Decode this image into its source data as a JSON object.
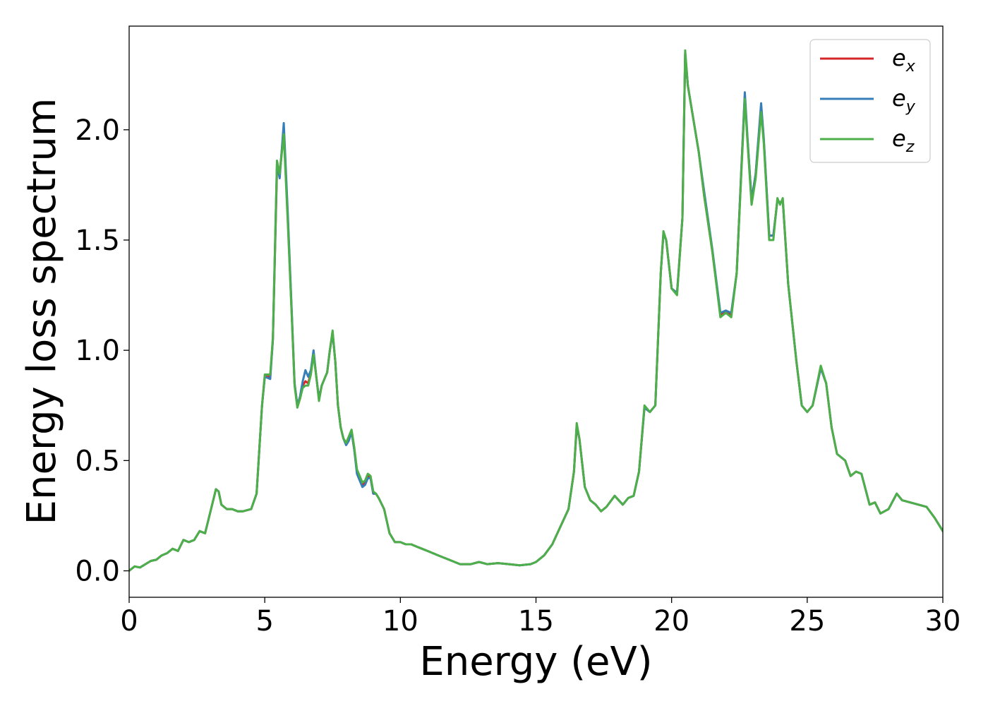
{
  "chart_data": {
    "type": "line",
    "title": "",
    "xlabel": "Energy (eV)",
    "ylabel": "Energy loss spectrum",
    "xlim": [
      0,
      30
    ],
    "ylim": [
      -0.12,
      2.47
    ],
    "xticks": [
      0,
      5,
      10,
      15,
      20,
      25,
      30
    ],
    "xtick_labels": [
      "0",
      "5",
      "10",
      "15",
      "20",
      "25",
      "30"
    ],
    "yticks": [
      0.0,
      0.5,
      1.0,
      1.5,
      2.0
    ],
    "ytick_labels": [
      "0.0",
      "0.5",
      "1.0",
      "1.5",
      "2.0"
    ],
    "grid": false,
    "legend_position": "top-right",
    "colors": {
      "e_x": "#d62728",
      "e_y": "#377eb8",
      "e_z": "#4daf4a"
    },
    "legend": [
      {
        "key": "e_x",
        "base": "e",
        "sub": "x"
      },
      {
        "key": "e_y",
        "base": "e",
        "sub": "y"
      },
      {
        "key": "e_z",
        "base": "e",
        "sub": "z"
      }
    ],
    "x": [
      0,
      0.2,
      0.4,
      0.6,
      0.8,
      1.0,
      1.2,
      1.4,
      1.6,
      1.8,
      2.0,
      2.2,
      2.4,
      2.6,
      2.8,
      3.0,
      3.2,
      3.3,
      3.4,
      3.6,
      3.8,
      4.0,
      4.2,
      4.5,
      4.7,
      4.9,
      5.0,
      5.2,
      5.3,
      5.45,
      5.55,
      5.7,
      5.85,
      6.0,
      6.1,
      6.2,
      6.3,
      6.4,
      6.5,
      6.6,
      6.7,
      6.8,
      6.9,
      7.0,
      7.1,
      7.2,
      7.3,
      7.4,
      7.5,
      7.6,
      7.7,
      7.8,
      7.9,
      8.0,
      8.1,
      8.2,
      8.3,
      8.4,
      8.5,
      8.6,
      8.7,
      8.8,
      8.9,
      9.0,
      9.1,
      9.2,
      9.4,
      9.6,
      9.8,
      10.0,
      10.2,
      10.4,
      10.6,
      10.8,
      11.0,
      11.4,
      11.8,
      12.2,
      12.6,
      12.9,
      13.2,
      13.6,
      14.0,
      14.4,
      14.8,
      15.0,
      15.3,
      15.6,
      15.9,
      16.2,
      16.4,
      16.5,
      16.6,
      16.8,
      17.0,
      17.2,
      17.4,
      17.6,
      17.9,
      18.2,
      18.4,
      18.6,
      18.8,
      19.0,
      19.2,
      19.4,
      19.6,
      19.7,
      19.8,
      20.0,
      20.2,
      20.4,
      20.5,
      20.6,
      20.8,
      21.0,
      21.2,
      21.5,
      21.8,
      22.0,
      22.2,
      22.4,
      22.6,
      22.7,
      22.8,
      22.95,
      23.1,
      23.3,
      23.4,
      23.6,
      23.75,
      23.9,
      24.0,
      24.1,
      24.3,
      24.6,
      24.8,
      25.0,
      25.2,
      25.5,
      25.7,
      25.9,
      26.1,
      26.4,
      26.6,
      26.8,
      27.0,
      27.3,
      27.5,
      27.7,
      28.0,
      28.3,
      28.5,
      28.8,
      29.1,
      29.4,
      29.7,
      30.0
    ],
    "series": [
      {
        "key": "e_x",
        "values": [
          0.0,
          0.02,
          0.015,
          0.03,
          0.045,
          0.05,
          0.07,
          0.08,
          0.1,
          0.09,
          0.14,
          0.13,
          0.14,
          0.18,
          0.17,
          0.27,
          0.37,
          0.36,
          0.3,
          0.28,
          0.28,
          0.27,
          0.27,
          0.28,
          0.35,
          0.75,
          0.88,
          0.88,
          1.05,
          1.82,
          1.8,
          2.0,
          1.6,
          1.15,
          0.85,
          0.75,
          0.78,
          0.84,
          0.86,
          0.85,
          0.9,
          0.99,
          0.88,
          0.78,
          0.84,
          0.87,
          0.9,
          1.0,
          1.08,
          0.95,
          0.75,
          0.65,
          0.6,
          0.58,
          0.6,
          0.63,
          0.55,
          0.45,
          0.42,
          0.39,
          0.4,
          0.43,
          0.42,
          0.35,
          0.35,
          0.33,
          0.28,
          0.17,
          0.13,
          0.13,
          0.12,
          0.12,
          0.11,
          0.1,
          0.09,
          0.07,
          0.05,
          0.03,
          0.03,
          0.04,
          0.03,
          0.035,
          0.03,
          0.025,
          0.03,
          0.04,
          0.07,
          0.12,
          0.2,
          0.28,
          0.45,
          0.65,
          0.6,
          0.38,
          0.32,
          0.3,
          0.27,
          0.29,
          0.34,
          0.3,
          0.33,
          0.34,
          0.45,
          0.74,
          0.72,
          0.75,
          1.35,
          1.53,
          1.5,
          1.28,
          1.26,
          1.6,
          2.34,
          2.2,
          2.05,
          1.9,
          1.7,
          1.45,
          1.16,
          1.18,
          1.16,
          1.35,
          1.9,
          2.15,
          1.95,
          1.68,
          1.8,
          2.1,
          1.95,
          1.52,
          1.52,
          1.68,
          1.67,
          1.68,
          1.3,
          0.95,
          0.75,
          0.72,
          0.75,
          0.92,
          0.85,
          0.65,
          0.53,
          0.5,
          0.43,
          0.45,
          0.44,
          0.3,
          0.31,
          0.26,
          0.28,
          0.35,
          0.32,
          0.31,
          0.3,
          0.29,
          0.24,
          0.18
        ]
      },
      {
        "key": "e_y",
        "values": [
          0.0,
          0.02,
          0.015,
          0.03,
          0.045,
          0.05,
          0.07,
          0.08,
          0.1,
          0.09,
          0.14,
          0.13,
          0.14,
          0.18,
          0.17,
          0.27,
          0.37,
          0.36,
          0.3,
          0.28,
          0.28,
          0.27,
          0.27,
          0.28,
          0.35,
          0.75,
          0.88,
          0.87,
          1.05,
          1.85,
          1.78,
          2.03,
          1.62,
          1.16,
          0.85,
          0.75,
          0.79,
          0.86,
          0.91,
          0.88,
          0.91,
          1.0,
          0.88,
          0.78,
          0.84,
          0.87,
          0.9,
          1.0,
          1.08,
          0.95,
          0.75,
          0.65,
          0.6,
          0.57,
          0.59,
          0.63,
          0.55,
          0.44,
          0.41,
          0.38,
          0.39,
          0.42,
          0.42,
          0.35,
          0.35,
          0.33,
          0.28,
          0.17,
          0.13,
          0.13,
          0.12,
          0.12,
          0.11,
          0.1,
          0.09,
          0.07,
          0.05,
          0.03,
          0.03,
          0.04,
          0.03,
          0.035,
          0.03,
          0.025,
          0.03,
          0.04,
          0.07,
          0.12,
          0.2,
          0.28,
          0.45,
          0.66,
          0.6,
          0.38,
          0.32,
          0.3,
          0.27,
          0.29,
          0.34,
          0.3,
          0.33,
          0.34,
          0.45,
          0.74,
          0.72,
          0.75,
          1.35,
          1.53,
          1.5,
          1.28,
          1.26,
          1.6,
          2.35,
          2.2,
          2.05,
          1.9,
          1.72,
          1.46,
          1.17,
          1.18,
          1.17,
          1.35,
          1.9,
          2.17,
          1.96,
          1.68,
          1.8,
          2.12,
          1.96,
          1.52,
          1.52,
          1.68,
          1.67,
          1.68,
          1.3,
          0.95,
          0.75,
          0.72,
          0.75,
          0.92,
          0.85,
          0.65,
          0.53,
          0.5,
          0.43,
          0.45,
          0.44,
          0.3,
          0.31,
          0.26,
          0.28,
          0.35,
          0.32,
          0.31,
          0.3,
          0.29,
          0.24,
          0.18
        ]
      },
      {
        "key": "e_z",
        "values": [
          0.0,
          0.02,
          0.015,
          0.03,
          0.045,
          0.05,
          0.07,
          0.08,
          0.1,
          0.09,
          0.14,
          0.13,
          0.14,
          0.18,
          0.17,
          0.27,
          0.37,
          0.36,
          0.3,
          0.28,
          0.28,
          0.27,
          0.27,
          0.28,
          0.35,
          0.75,
          0.89,
          0.89,
          1.06,
          1.86,
          1.8,
          1.98,
          1.58,
          1.14,
          0.84,
          0.74,
          0.78,
          0.83,
          0.84,
          0.84,
          0.89,
          0.98,
          0.88,
          0.77,
          0.84,
          0.87,
          0.9,
          1.0,
          1.09,
          0.95,
          0.75,
          0.65,
          0.6,
          0.58,
          0.61,
          0.64,
          0.56,
          0.46,
          0.43,
          0.4,
          0.41,
          0.44,
          0.43,
          0.36,
          0.35,
          0.33,
          0.28,
          0.17,
          0.13,
          0.13,
          0.12,
          0.12,
          0.11,
          0.1,
          0.09,
          0.07,
          0.05,
          0.03,
          0.03,
          0.04,
          0.03,
          0.035,
          0.03,
          0.025,
          0.03,
          0.04,
          0.07,
          0.12,
          0.2,
          0.28,
          0.45,
          0.67,
          0.6,
          0.38,
          0.32,
          0.3,
          0.27,
          0.29,
          0.34,
          0.3,
          0.33,
          0.34,
          0.45,
          0.75,
          0.72,
          0.75,
          1.35,
          1.54,
          1.5,
          1.28,
          1.25,
          1.6,
          2.36,
          2.2,
          2.05,
          1.9,
          1.7,
          1.45,
          1.15,
          1.17,
          1.15,
          1.35,
          1.88,
          2.14,
          1.94,
          1.66,
          1.78,
          2.08,
          1.94,
          1.5,
          1.5,
          1.69,
          1.66,
          1.69,
          1.3,
          0.95,
          0.75,
          0.72,
          0.75,
          0.93,
          0.85,
          0.65,
          0.53,
          0.5,
          0.43,
          0.45,
          0.44,
          0.3,
          0.31,
          0.26,
          0.28,
          0.35,
          0.32,
          0.31,
          0.3,
          0.29,
          0.24,
          0.18
        ]
      }
    ]
  }
}
